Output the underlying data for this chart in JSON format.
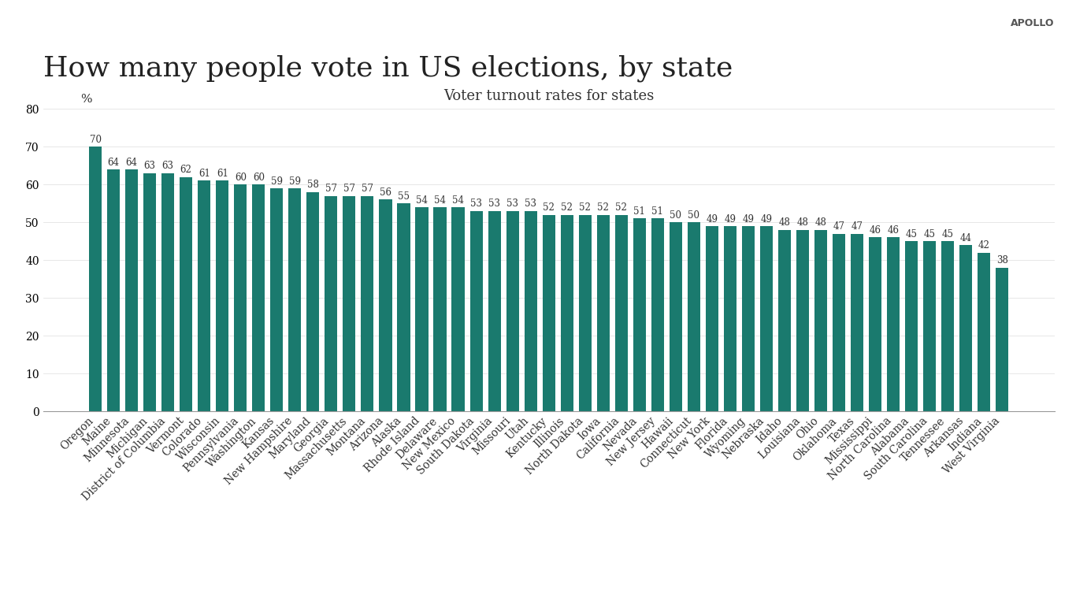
{
  "title": "How many people vote in US elections, by state",
  "subtitle": "Voter turnout rates for states",
  "bar_color": "#1a7a6e",
  "background_color": "#ffffff",
  "ylabel": "%",
  "ylim": [
    0,
    80
  ],
  "yticks": [
    0,
    10,
    20,
    30,
    40,
    50,
    60,
    70,
    80
  ],
  "states": [
    "Oregon",
    "Maine",
    "Minnesota",
    "Michigan",
    "District of Columbia",
    "Vermont",
    "Colorado",
    "Wisconsin",
    "Pennsylvania",
    "Washington",
    "Kansas",
    "New Hampshire",
    "Maryland",
    "Georgia",
    "Massachusetts",
    "Montana",
    "Arizona",
    "Alaska",
    "Rhode Island",
    "Delaware",
    "New Mexico",
    "South Dakota",
    "Virginia",
    "Missouri",
    "Utah",
    "Kentucky",
    "Illinois",
    "North Dakota",
    "Iowa",
    "California",
    "Nevada",
    "New Jersey",
    "Hawaii",
    "Connecticut",
    "New York",
    "Florida",
    "Wyoming",
    "Nebraska",
    "Idaho",
    "Louisiana",
    "Ohio",
    "Oklahoma",
    "Texas",
    "Mississippi",
    "North Carolina",
    "Alabama",
    "South Carolina",
    "Tennessee",
    "Arkansas",
    "Indiana",
    "West Virginia"
  ],
  "values": [
    70,
    64,
    64,
    63,
    63,
    62,
    61,
    61,
    60,
    60,
    59,
    59,
    58,
    57,
    57,
    57,
    56,
    55,
    54,
    54,
    54,
    53,
    53,
    53,
    53,
    52,
    52,
    52,
    52,
    52,
    51,
    51,
    50,
    50,
    49,
    49,
    49,
    49,
    48,
    48,
    48,
    47,
    47,
    46,
    46,
    45,
    45,
    45,
    44,
    42,
    38
  ],
  "apollo_text": "APOLLO",
  "title_fontsize": 26,
  "subtitle_fontsize": 13,
  "tick_fontsize": 10,
  "bar_label_fontsize": 8.5,
  "apollo_fontsize": 9
}
